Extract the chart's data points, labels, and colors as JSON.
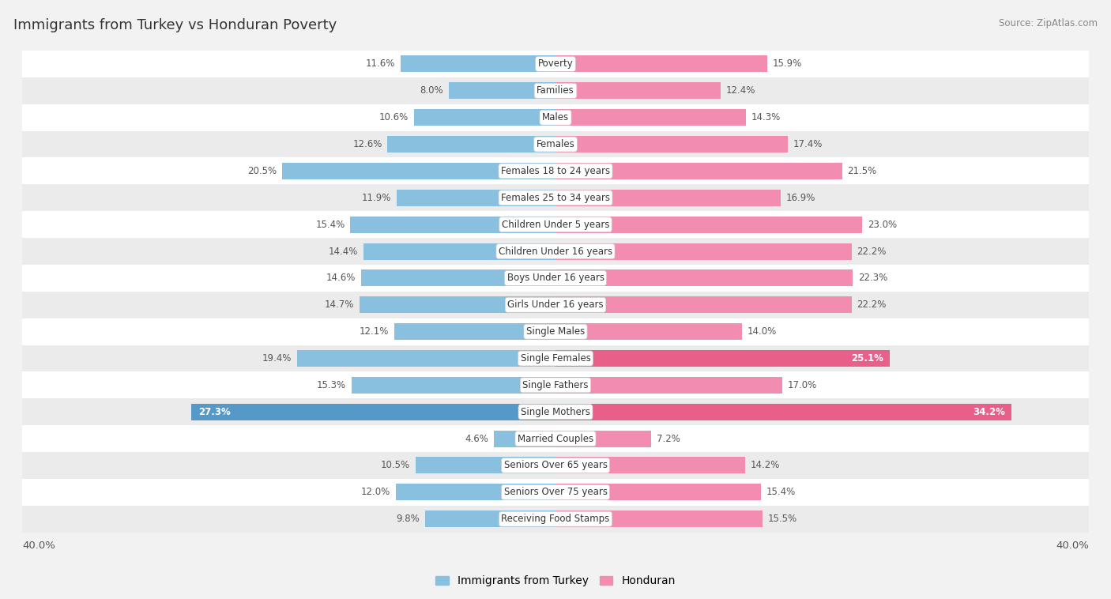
{
  "title": "Immigrants from Turkey vs Honduran Poverty",
  "source": "Source: ZipAtlas.com",
  "categories": [
    "Poverty",
    "Families",
    "Males",
    "Females",
    "Females 18 to 24 years",
    "Females 25 to 34 years",
    "Children Under 5 years",
    "Children Under 16 years",
    "Boys Under 16 years",
    "Girls Under 16 years",
    "Single Males",
    "Single Females",
    "Single Fathers",
    "Single Mothers",
    "Married Couples",
    "Seniors Over 65 years",
    "Seniors Over 75 years",
    "Receiving Food Stamps"
  ],
  "turkey_values": [
    11.6,
    8.0,
    10.6,
    12.6,
    20.5,
    11.9,
    15.4,
    14.4,
    14.6,
    14.7,
    12.1,
    19.4,
    15.3,
    27.3,
    4.6,
    10.5,
    12.0,
    9.8
  ],
  "honduran_values": [
    15.9,
    12.4,
    14.3,
    17.4,
    21.5,
    16.9,
    23.0,
    22.2,
    22.3,
    22.2,
    14.0,
    25.1,
    17.0,
    34.2,
    7.2,
    14.2,
    15.4,
    15.5
  ],
  "turkey_color": "#89bfdf",
  "honduran_color": "#f28cb1",
  "turkey_highlight_color": "#5599c8",
  "honduran_highlight_color": "#e8608a",
  "bg_color": "#f2f2f2",
  "row_even_color": "#ffffff",
  "row_odd_color": "#ebebeb",
  "axis_limit": 40.0,
  "label_fontsize": 8.5,
  "title_fontsize": 13,
  "value_fontsize": 8.5,
  "legend_label_turkey": "Immigrants from Turkey",
  "legend_label_honduran": "Honduran",
  "highlight_threshold": 25.0
}
